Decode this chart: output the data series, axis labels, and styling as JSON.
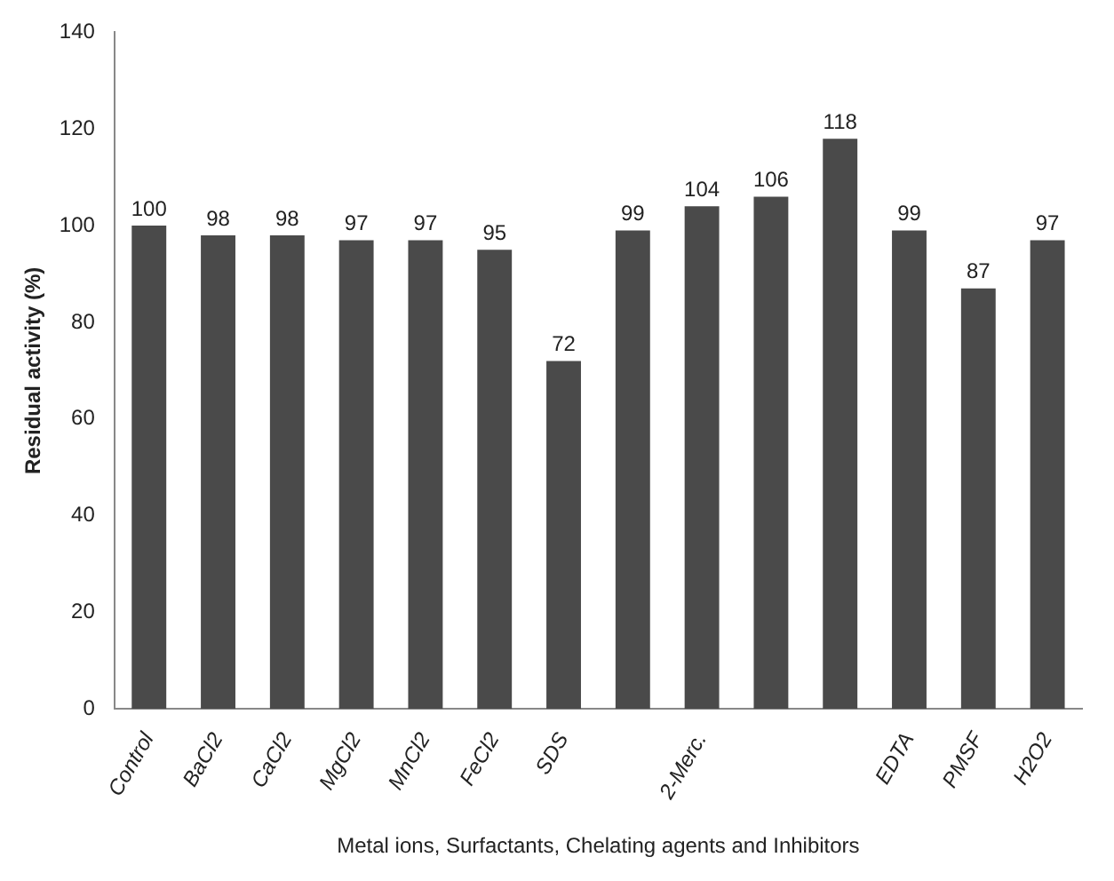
{
  "chart_data": {
    "type": "bar",
    "xlabel": "Metal ions, Surfactants, Chelating agents and Inhibitors",
    "ylabel": "Residual activity (%)",
    "categories": [
      "Control",
      "BaCl2",
      "CaCl2",
      "MgCl2",
      "MnCl2",
      "FeCl2",
      "SDS",
      null,
      "2-Merc.",
      null,
      null,
      "EDTA",
      "PMSF",
      "H2O2"
    ],
    "values": [
      100,
      98,
      98,
      97,
      97,
      95,
      72,
      99,
      104,
      106,
      118,
      99,
      87,
      97
    ],
    "color": "#4a4a4a",
    "ylim": [
      0,
      140
    ],
    "yticks": [
      0,
      20,
      40,
      60,
      80,
      100,
      120,
      140
    ],
    "grid": false,
    "data_labels": true
  }
}
